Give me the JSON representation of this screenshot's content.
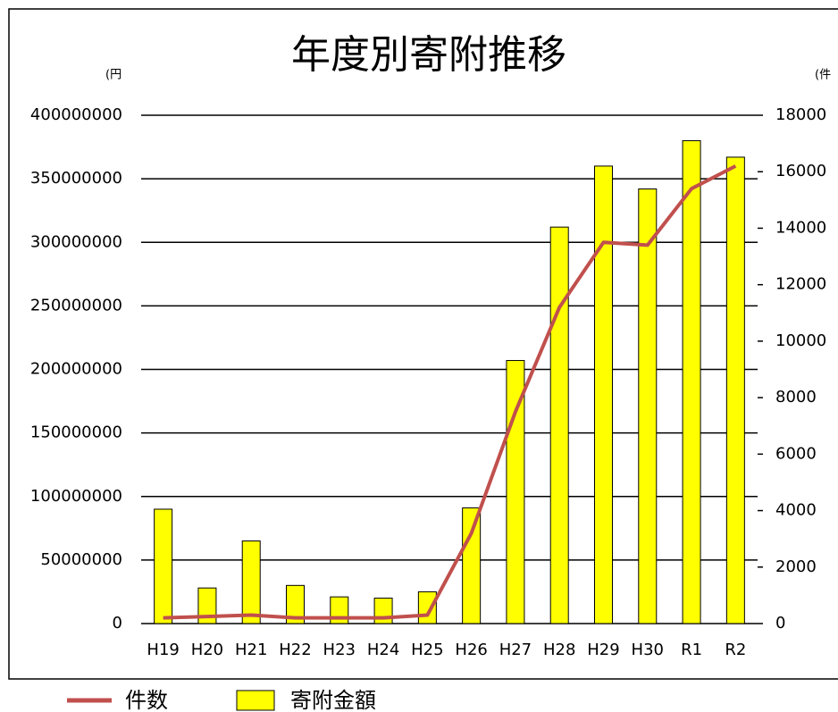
{
  "chart_data": {
    "type": "bar",
    "title": "年度別寄附推移",
    "y_label": "(円",
    "y2_label": "(件",
    "categories": [
      "H19",
      "H20",
      "H21",
      "H22",
      "H23",
      "H24",
      "H25",
      "H26",
      "H27",
      "H28",
      "H29",
      "H30",
      "R1",
      "R2"
    ],
    "series": [
      {
        "name": "寄附金額",
        "type": "bar",
        "color": "#ffff00",
        "values": [
          90000000,
          28000000,
          65000000,
          30000000,
          21000000,
          20000000,
          25000000,
          91000000,
          207000000,
          312000000,
          360000000,
          342000000,
          380000000,
          367000000
        ]
      },
      {
        "name": "件数",
        "type": "line",
        "axis": "y2",
        "color": "#c0504d",
        "values": [
          200,
          250,
          300,
          200,
          200,
          200,
          300,
          3200,
          7500,
          11200,
          13500,
          13400,
          15400,
          16200
        ]
      }
    ],
    "ylim": [
      0,
      400000000
    ],
    "yticks": [
      0,
      50000000,
      100000000,
      150000000,
      200000000,
      250000000,
      300000000,
      350000000,
      400000000
    ],
    "y2lim": [
      0,
      18000
    ],
    "y2ticks": [
      0,
      2000,
      4000,
      6000,
      8000,
      10000,
      12000,
      14000,
      16000,
      18000
    ],
    "grid": true
  }
}
